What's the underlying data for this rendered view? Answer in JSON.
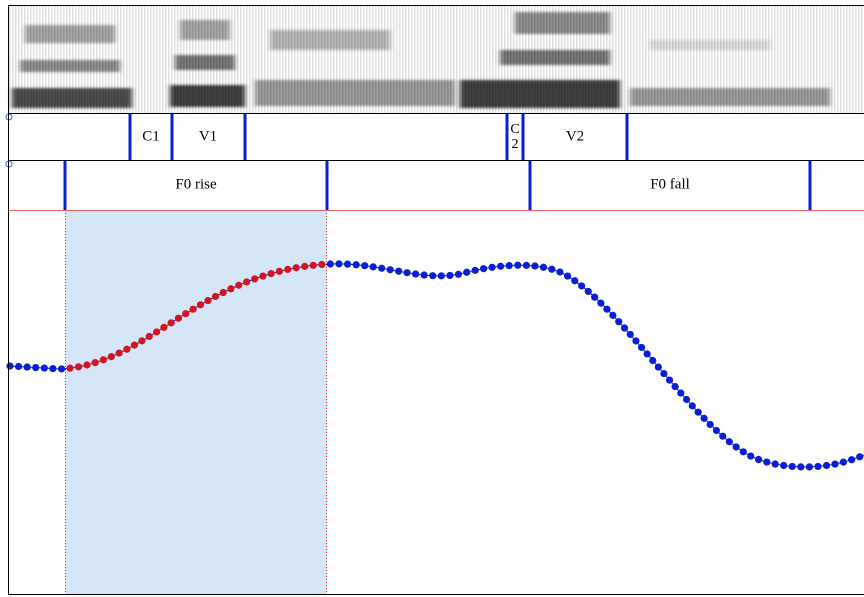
{
  "tiers": [
    {
      "labels": [
        "C1",
        "V1",
        "C\n2",
        "V2"
      ]
    },
    {
      "labels": [
        "F0 rise",
        "F0 fall"
      ]
    }
  ]
}
